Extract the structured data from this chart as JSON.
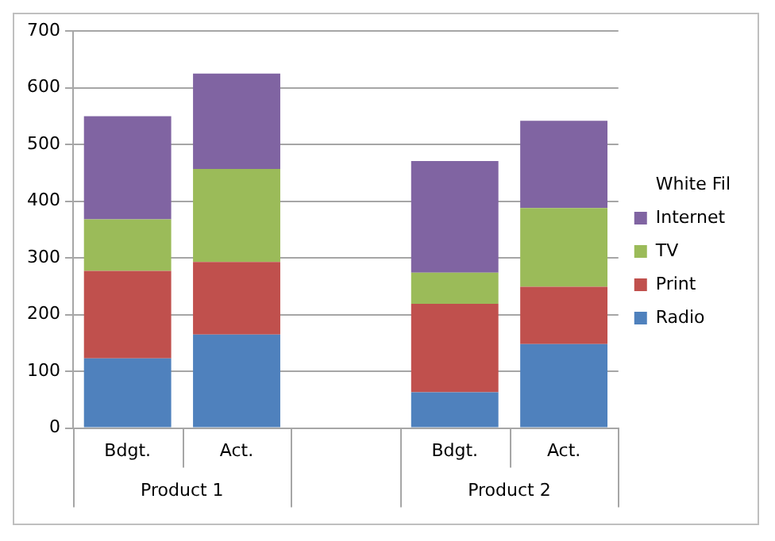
{
  "chart_data": {
    "type": "bar",
    "stacked": true,
    "categories": [
      "Bdgt.",
      "Act.",
      null,
      "Bdgt.",
      "Act."
    ],
    "series": [
      {
        "name": "Radio",
        "color": "#4f81bd",
        "values": [
          123,
          165,
          null,
          63,
          148
        ]
      },
      {
        "name": "Print",
        "color": "#c0504d",
        "values": [
          154,
          128,
          null,
          156,
          101
        ]
      },
      {
        "name": "TV",
        "color": "#9bbb59",
        "values": [
          91,
          164,
          null,
          55,
          139
        ]
      },
      {
        "name": "Internet",
        "color": "#8064a2",
        "values": [
          182,
          168,
          null,
          197,
          154
        ]
      },
      {
        "name": "White Fil",
        "values": [
          null,
          null,
          null,
          null,
          null
        ]
      }
    ],
    "annotations": [
      "Product 1",
      "Product 2"
    ],
    "ylim": [
      0,
      700
    ],
    "yticks": [
      0,
      100,
      200,
      300,
      400,
      500,
      600,
      700
    ],
    "grid": "y",
    "legend": "right"
  }
}
